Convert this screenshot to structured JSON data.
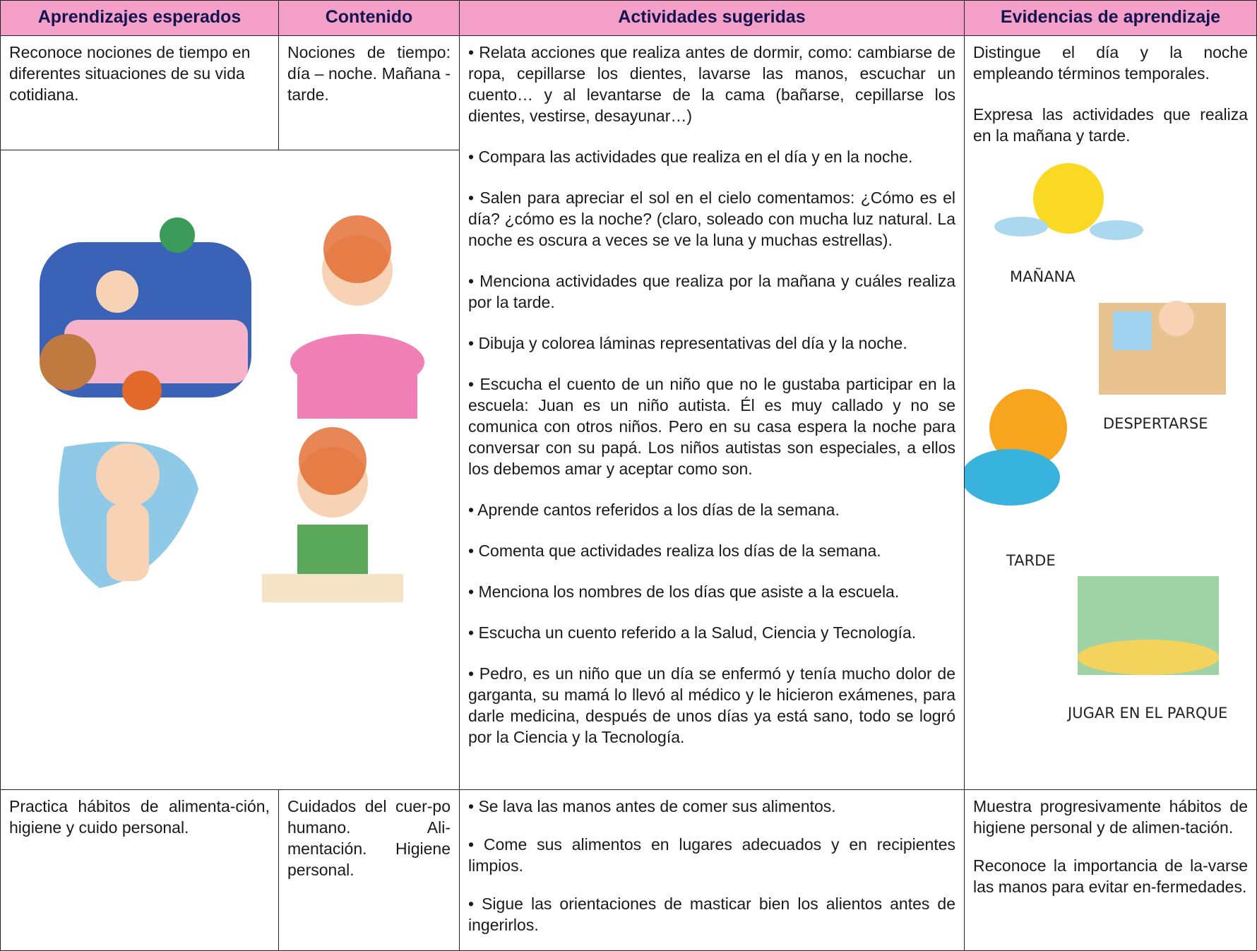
{
  "header": {
    "columns": [
      "Aprendizajes esperados",
      "Contenido",
      "Actividades sugeridas",
      "Evidencias de aprendizaje"
    ]
  },
  "rows": [
    {
      "aprendizajes": "Reconoce nociones de tiempo en diferentes situaciones de su vida cotidiana.",
      "contenido": "Nociones de tiempo: día – noche. Mañana - tarde.",
      "actividades": [
        "• Relata acciones que realiza antes de dormir, como: cambiarse de ropa, cepillarse los dientes, lavarse las manos, escuchar un cuento… y al levantarse de la cama (bañarse, cepillarse los dientes, vestirse, desayunar…)",
        "• Compara las actividades que realiza en el día y en la noche.",
        "• Salen para apreciar el sol en el cielo comentamos: ¿Cómo es el día? ¿cómo es la noche? (claro, soleado con mucha luz natural. La noche es oscura a veces se ve la luna y muchas estrellas).",
        "• Menciona actividades que realiza por la mañana y cuáles realiza por la tarde.",
        "• Dibuja y colorea láminas representativas del día y la noche.",
        "• Escucha el cuento de un niño que no le gustaba participar en la escuela: Juan es un niño autista. Él es muy callado y no se comunica con otros niños. Pero en su casa espera la noche para conversar con su papá. Los niños autistas son especiales, a ellos los debemos amar y aceptar como son.",
        "• Aprende cantos referidos a los días de la semana.",
        "• Comenta que actividades realiza los días de la semana.",
        "• Menciona los nombres de los días que asiste a la escuela.",
        "• Escucha un cuento referido a la Salud, Ciencia y Tecnología.",
        "• Pedro, es un niño que un día se enfermó y tenía mucho dolor de garganta, su mamá lo llevó al médico y le hicieron exámenes, para darle medicina, después de unos días ya está sano, todo se logró por la Ciencia y la Tecnología."
      ],
      "evidencias": [
        "Distingue el día y la noche empleando términos temporales.",
        "Expresa las actividades que realiza en la mañana y tarde."
      ],
      "image_labels": [
        "MAÑANA",
        "DESPERTARSE",
        "TARDE",
        "JUGAR EN EL PARQUE"
      ]
    },
    {
      "aprendizajes": "Practica hábitos de alimenta-ción, higiene y cuido personal.",
      "contenido": "Cuidados del cuer-po humano. Ali-mentación. Higiene personal.",
      "actividades": [
        "• Se lava las manos antes de comer sus alimentos.",
        "• Come sus alimentos en lugares adecuados y en recipientes limpios.",
        "• Sigue las orientaciones de masticar bien los alientos antes de ingerirlos."
      ],
      "evidencias": [
        "Muestra progresivamente hábitos de higiene personal y de alimen-tación.",
        "Reconoce la importancia de la-varse las manos para evitar en-fermedades."
      ]
    }
  ]
}
